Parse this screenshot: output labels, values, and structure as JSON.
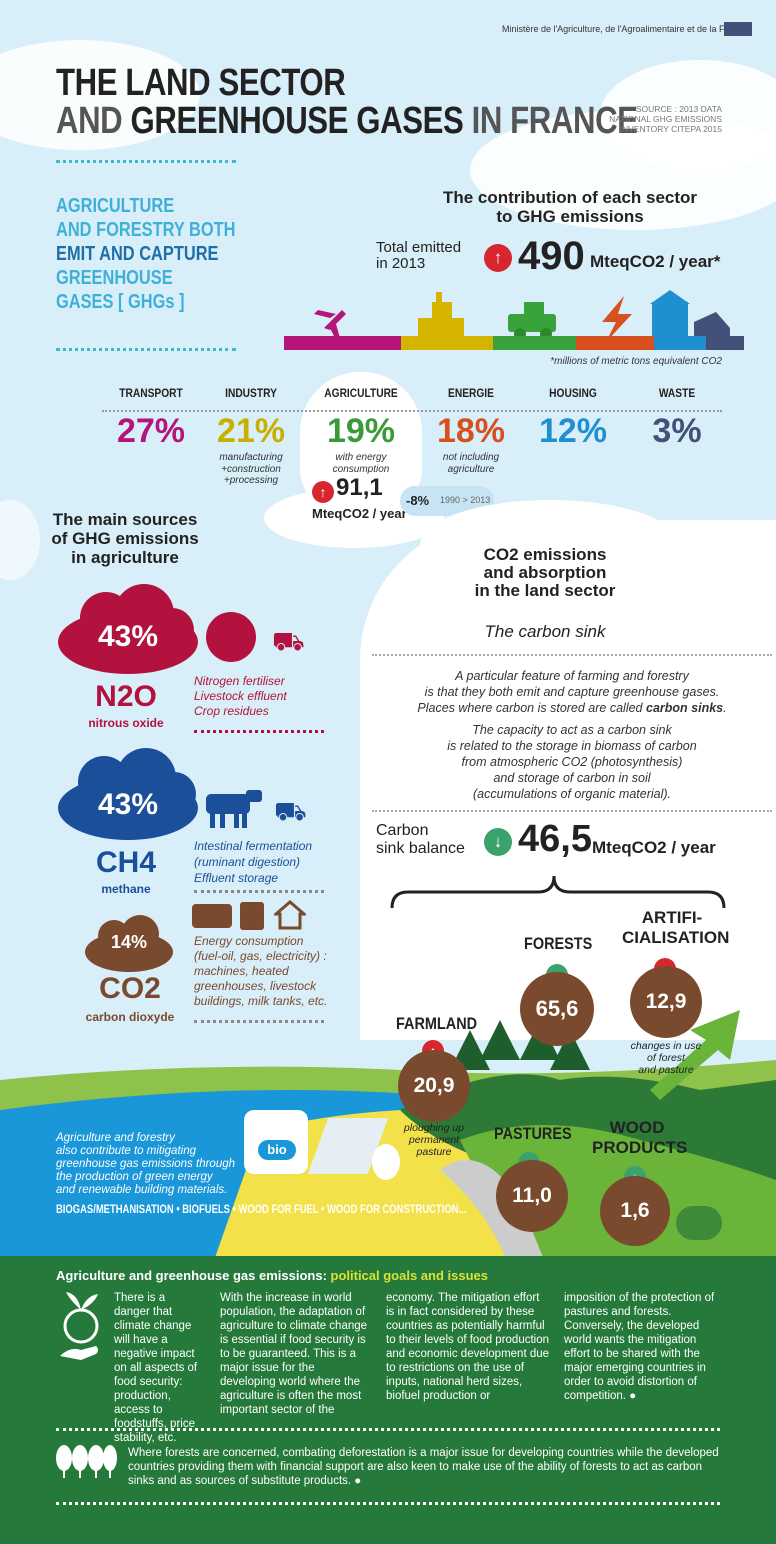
{
  "header": {
    "ministry": "Ministère de l'Agriculture, de l'Agroalimentaire et de la Forêt",
    "title_line1": "THE LAND SECTOR",
    "title_line2_a": "AND ",
    "title_line2_b": "GREENHOUSE GASES",
    "title_line2_c": " IN FRANCE",
    "source_line1": "SOURCE : 2013 DATA",
    "source_line2": "NATIONAL GHG EMISSIONS",
    "source_line3": "INVENTORY CITEPA 2015"
  },
  "intro": {
    "line1": "AGRICULTURE",
    "line2": "AND FORESTRY BOTH",
    "line3": "EMIT AND CAPTURE",
    "line4": "GREENHOUSE",
    "line5": "GASES [ GHGs ]"
  },
  "contribution": {
    "title_line1": "The contribution of each sector",
    "title_line2": "to GHG emissions",
    "total_label_line1": "Total emitted",
    "total_label_line2": "in 2013",
    "total_value": "490",
    "total_unit": "MteqCO2 / year*",
    "footnote": "*millions of metric tons equivalent CO2",
    "bar_colors": [
      "#b5157a",
      "#d4b400",
      "#3aa23a",
      "#d8501e",
      "#1f8fd0",
      "#43507a"
    ],
    "sectors": [
      {
        "name": "TRANSPORT",
        "pct": "27%",
        "note": "",
        "color": "#b5157a"
      },
      {
        "name": "INDUSTRY",
        "pct": "21%",
        "note": "manufacturing +construction +processing",
        "color": "#c9b000"
      },
      {
        "name": "AGRICULTURE",
        "pct": "19%",
        "note": "with energy consumption",
        "color": "#3a9a3a"
      },
      {
        "name": "ENERGIE",
        "pct": "18%",
        "note": "not including agriculture",
        "color": "#d8501e"
      },
      {
        "name": "HOUSING",
        "pct": "12%",
        "note": "",
        "color": "#1f8fd0"
      },
      {
        "name": "WASTE",
        "pct": "3%",
        "note": "",
        "color": "#43507a"
      }
    ],
    "agri_value": "91,1",
    "agri_unit": "MteqCO2 / year",
    "agri_change": "-8%",
    "agri_period": "1990 > 2013"
  },
  "sources": {
    "title_line1": "The main sources",
    "title_line2": "of GHG emissions",
    "title_line3": "in agriculture",
    "items": [
      {
        "pct": "43%",
        "formula": "N2O",
        "name": "nitrous oxide",
        "desc1": "Nitrogen fertiliser",
        "desc2": "Livestock effluent",
        "desc3": "Crop residues",
        "color": "#b3123e"
      },
      {
        "pct": "43%",
        "formula": "CH4",
        "name": "methane",
        "desc1": "Intestinal fermentation",
        "desc2": "(ruminant digestion)",
        "desc3": "Effluent storage",
        "color": "#1b4f9a"
      },
      {
        "pct": "14%",
        "formula": "CO2",
        "name": "carbon dioxyde",
        "desc1": "Energy consumption",
        "desc2": "(fuel-oil, gas, electricity) :",
        "desc3": "machines, heated",
        "desc4": "greenhouses, livestock",
        "desc5": "buildings, milk tanks, etc.",
        "color": "#7a4a2e"
      }
    ]
  },
  "carbon": {
    "title_line1": "CO2 emissions",
    "title_line2": "and absorption",
    "title_line3": "in the land sector",
    "subtitle": "The carbon sink",
    "para1_line1": "A particular feature of farming and forestry",
    "para1_line2": "is that they both emit and capture greenhouse gases.",
    "para1_line3": "Places where carbon is stored are called",
    "para1_bold": "carbon sinks",
    "para2_line1": "The capacity to act as a carbon sink",
    "para2_line2": "is related to the storage in biomass of carbon",
    "para2_line3": "from atmospheric CO2 (photosynthesis)",
    "para2_line4": "and storage of carbon in soil",
    "para2_line5": "(accumulations of organic material).",
    "balance_label_line1": "Carbon",
    "balance_label_line2": "sink balance",
    "balance_value": "46,5",
    "balance_unit": "MteqCO2 / year"
  },
  "land": {
    "forests": {
      "label": "FORESTS",
      "value": "65,6"
    },
    "artif": {
      "label_line1": "ARTIFI-",
      "label_line2": "CIALISATION",
      "value": "12,9",
      "note1": "changes in use",
      "note2": "of forest",
      "note3": "and pasture"
    },
    "farmland": {
      "label": "FARMLAND",
      "value": "20,9",
      "note1": "ploughing up",
      "note2": "permanent",
      "note3": "pasture"
    },
    "pastures": {
      "label": "PASTURES",
      "value": "11,0"
    },
    "wood": {
      "label_line1": "WOOD",
      "label_line2": "PRODUCTS",
      "value": "1,6"
    }
  },
  "mitigation": {
    "line1": "Agriculture and forestry",
    "line2": "also contribute to mitigating",
    "line3": "greenhouse gas emissions through",
    "line4": "the production of green energy",
    "line5": "and renewable building materials.",
    "list": "BIOGAS/METHANISATION • BIOFUELS • WOOD FOR FUEL • WOOD FOR CONSTRUCTION...",
    "bio_label": "bio"
  },
  "policy": {
    "title_a": "Agriculture and greenhouse gas emissions: ",
    "title_b": "political goals and issues",
    "col1": "There is a danger that climate change will have a negative impact on all aspects of food security: production, access to foodstuffs, price stability, etc.",
    "col2": "With the increase in world population, the adaptation of agriculture to climate change is essential if food security is to be guaranteed. This is a major issue for the developing world where the agriculture is often the most important sector of the",
    "col3": "economy. The mitigation effort is in fact considered by these countries as potentially harmful to their levels of food production and economic development due to restrictions on the use of inputs, national herd sizes, biofuel production or",
    "col4": "imposition of the protection of pastures and forests. Conversely, the developed world wants the mitigation effort to be shared with the major emerging countries in order to avoid distortion of competition. ●",
    "forest_text": "Where forests are concerned, combating deforestation is a major issue for developing countries while the developed countries providing them with financial support are also keen to make use of the ability of forests to act as carbon sinks and as sources of substitute products. ●"
  }
}
